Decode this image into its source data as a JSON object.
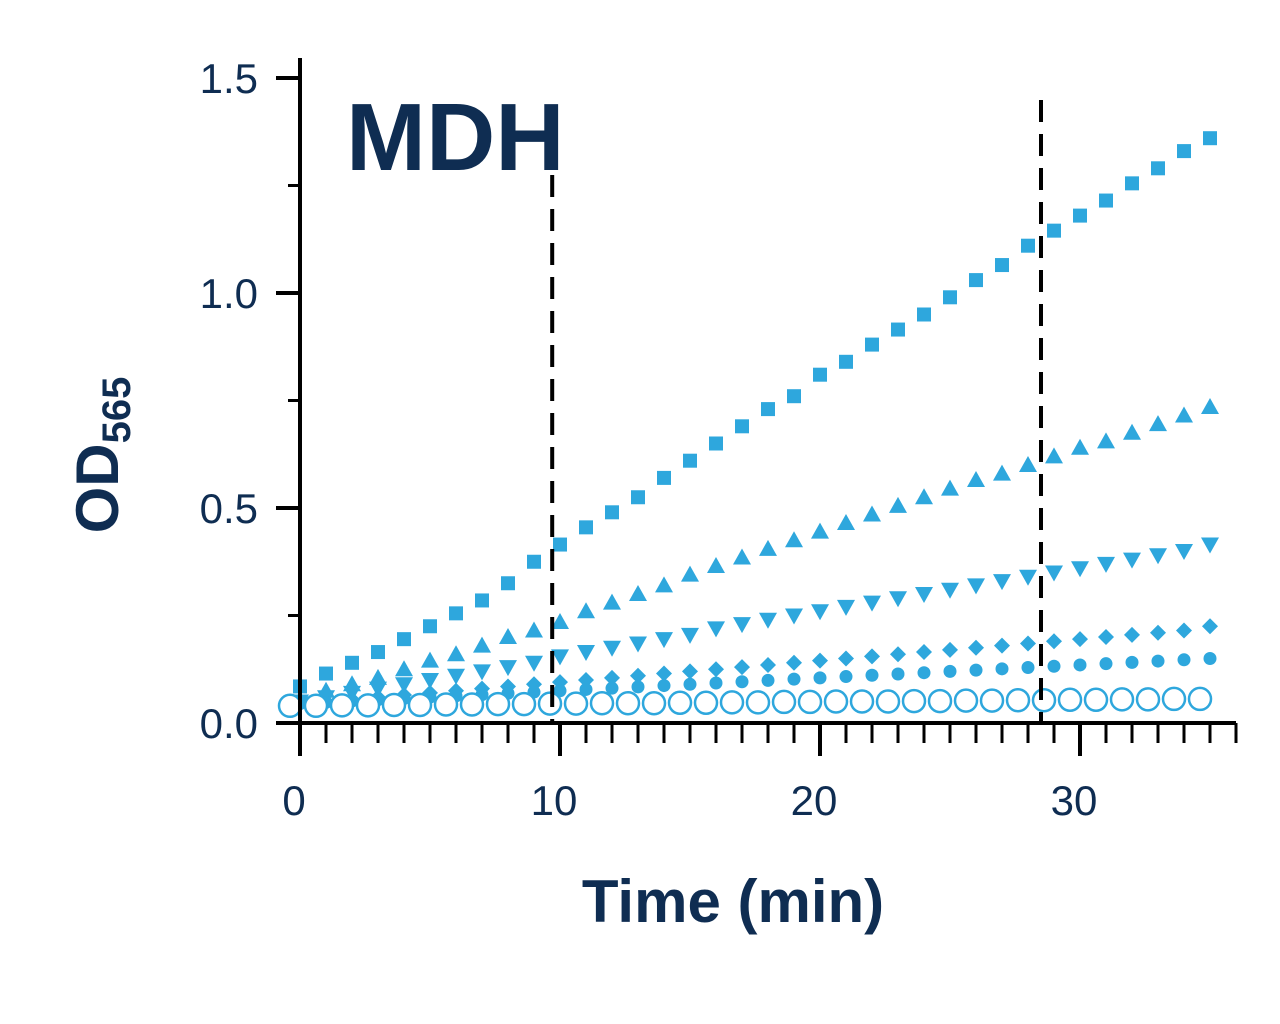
{
  "chart_data": {
    "type": "scatter",
    "title": "MDH",
    "xlabel": "Time (min)",
    "ylabel": "OD",
    "ylabel_subscript": "565",
    "xlim": [
      0,
      36
    ],
    "ylim": [
      0,
      1.5
    ],
    "x_ticks": [
      0,
      10,
      20,
      30
    ],
    "x_tick_labels": [
      "0",
      "10",
      "20",
      "30"
    ],
    "x_minor_step": 1,
    "y_ticks": [
      0,
      0.5,
      1.0,
      1.5
    ],
    "y_tick_labels": [
      "0.0",
      "0.5",
      "1.0",
      "1.5"
    ],
    "grid": false,
    "legend": "none",
    "vertical_lines_x": [
      9.7,
      28.5
    ],
    "x": [
      0,
      1,
      2,
      3,
      4,
      5,
      6,
      7,
      8,
      9,
      10,
      11,
      12,
      13,
      14,
      15,
      16,
      17,
      18,
      19,
      20,
      21,
      22,
      23,
      24,
      25,
      26,
      27,
      28,
      29,
      30,
      31,
      32,
      33,
      34,
      35
    ],
    "series": [
      {
        "marker": "square",
        "color": "#2ea7dd",
        "values": [
          0.085,
          0.115,
          0.14,
          0.165,
          0.195,
          0.225,
          0.255,
          0.285,
          0.325,
          0.375,
          0.415,
          0.455,
          0.49,
          0.525,
          0.57,
          0.61,
          0.65,
          0.69,
          0.73,
          0.76,
          0.81,
          0.84,
          0.88,
          0.915,
          0.95,
          0.99,
          1.03,
          1.065,
          1.11,
          1.145,
          1.18,
          1.215,
          1.255,
          1.29,
          1.33,
          1.36
        ]
      },
      {
        "marker": "triangle-up",
        "color": "#2ea7dd",
        "values": [
          0.055,
          0.075,
          0.09,
          0.105,
          0.125,
          0.145,
          0.16,
          0.18,
          0.2,
          0.215,
          0.235,
          0.26,
          0.28,
          0.3,
          0.32,
          0.345,
          0.365,
          0.385,
          0.405,
          0.425,
          0.445,
          0.465,
          0.485,
          0.505,
          0.525,
          0.545,
          0.565,
          0.58,
          0.6,
          0.62,
          0.64,
          0.655,
          0.675,
          0.695,
          0.715,
          0.735
        ]
      },
      {
        "marker": "triangle-down",
        "color": "#2ea7dd",
        "values": [
          0.05,
          0.06,
          0.07,
          0.08,
          0.09,
          0.1,
          0.11,
          0.12,
          0.13,
          0.14,
          0.155,
          0.165,
          0.175,
          0.185,
          0.195,
          0.205,
          0.22,
          0.23,
          0.24,
          0.25,
          0.26,
          0.27,
          0.28,
          0.29,
          0.3,
          0.31,
          0.32,
          0.33,
          0.34,
          0.35,
          0.36,
          0.37,
          0.38,
          0.39,
          0.4,
          0.415
        ]
      },
      {
        "marker": "diamond",
        "color": "#2ea7dd",
        "values": [
          0.045,
          0.05,
          0.055,
          0.06,
          0.065,
          0.07,
          0.075,
          0.08,
          0.085,
          0.09,
          0.095,
          0.1,
          0.105,
          0.11,
          0.115,
          0.12,
          0.125,
          0.13,
          0.135,
          0.14,
          0.145,
          0.15,
          0.155,
          0.16,
          0.165,
          0.17,
          0.175,
          0.18,
          0.185,
          0.19,
          0.195,
          0.2,
          0.205,
          0.21,
          0.215,
          0.225
        ]
      },
      {
        "marker": "circle",
        "color": "#2ea7dd",
        "values": [
          0.045,
          0.048,
          0.051,
          0.054,
          0.057,
          0.06,
          0.063,
          0.066,
          0.069,
          0.072,
          0.075,
          0.078,
          0.081,
          0.084,
          0.087,
          0.09,
          0.093,
          0.096,
          0.099,
          0.102,
          0.105,
          0.108,
          0.111,
          0.114,
          0.117,
          0.12,
          0.123,
          0.126,
          0.129,
          0.132,
          0.135,
          0.138,
          0.141,
          0.144,
          0.147,
          0.15
        ]
      },
      {
        "marker": "open-circle",
        "color": "#2ea7dd",
        "values": [
          0.04,
          0.04,
          0.041,
          0.041,
          0.042,
          0.042,
          0.043,
          0.043,
          0.044,
          0.044,
          0.045,
          0.045,
          0.046,
          0.046,
          0.046,
          0.047,
          0.047,
          0.048,
          0.048,
          0.049,
          0.049,
          0.05,
          0.05,
          0.05,
          0.051,
          0.051,
          0.052,
          0.052,
          0.053,
          0.053,
          0.054,
          0.054,
          0.055,
          0.055,
          0.056,
          0.056
        ]
      }
    ]
  }
}
